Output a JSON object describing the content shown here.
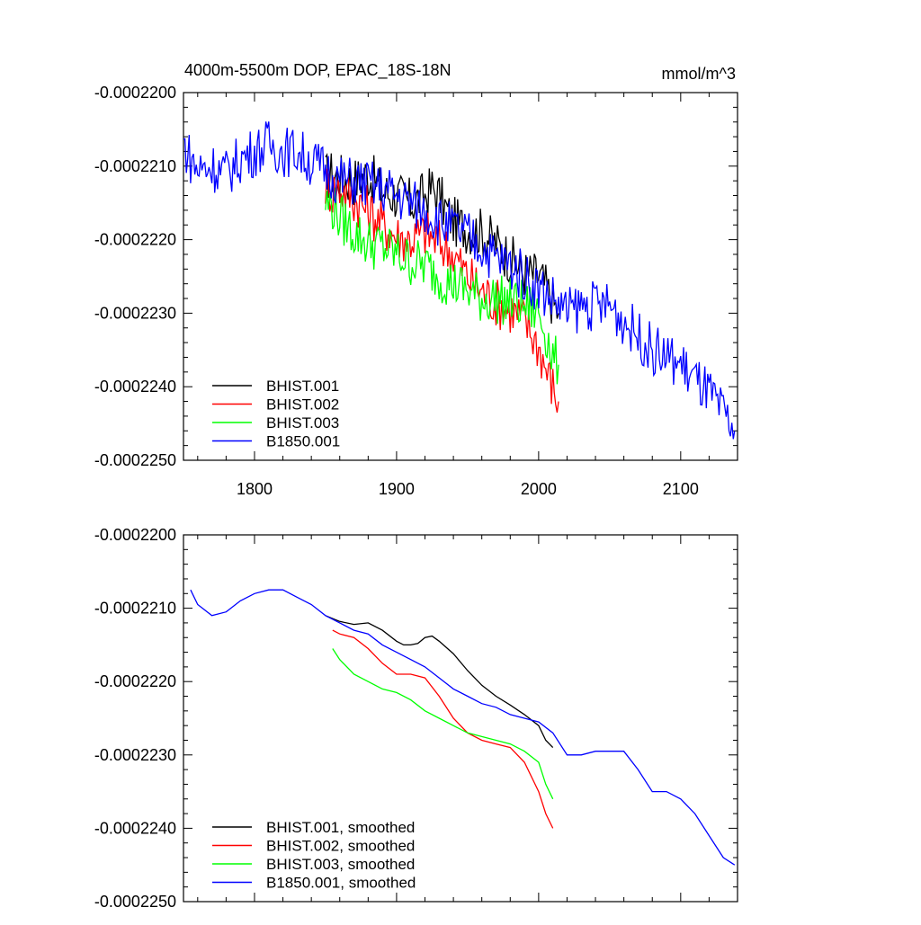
{
  "chart_data": [
    {
      "type": "line",
      "title": "4000m-5500m DOP, EPAC_18S-18N",
      "units": "mmol/m^3",
      "xlim": [
        1750,
        2140
      ],
      "ylim": [
        -0.000225,
        -0.00022
      ],
      "xticks": [
        1800,
        1900,
        2000,
        2100
      ],
      "xtick_labels": [
        "1800",
        "1900",
        "2000",
        "2100"
      ],
      "yticks": [
        -0.00022,
        -0.000221,
        -0.000222,
        -0.000223,
        -0.000224,
        -0.000225
      ],
      "ytick_labels": [
        "-0.0002200",
        "-0.0002210",
        "-0.0002220",
        "-0.0002230",
        "-0.0002240",
        "-0.0002250"
      ],
      "legend_position": "bottom-left",
      "series": [
        {
          "name": "BHIST.001",
          "color": "#000000",
          "x": [
            1850,
            1855,
            1860,
            1870,
            1880,
            1890,
            1900,
            1905,
            1910,
            1915,
            1920,
            1925,
            1930,
            1935,
            1940,
            1950,
            1960,
            1970,
            1980,
            1990,
            2000,
            2005,
            2010,
            2014
          ],
          "y": [
            -0.00022115,
            -0.0002211,
            -0.00022115,
            -0.0002212,
            -0.0002211,
            -0.00022135,
            -0.0002214,
            -0.00022145,
            -0.0002215,
            -0.00022145,
            -0.0002214,
            -0.0002213,
            -0.0002214,
            -0.0002216,
            -0.00022175,
            -0.00022185,
            -0.0002219,
            -0.00022205,
            -0.00022225,
            -0.00022245,
            -0.0002225,
            -0.00022265,
            -0.00022285,
            -0.000223
          ]
        },
        {
          "name": "BHIST.002",
          "color": "#ff0000",
          "x": [
            1850,
            1855,
            1860,
            1870,
            1880,
            1890,
            1900,
            1910,
            1920,
            1930,
            1940,
            1950,
            1960,
            1970,
            1980,
            1990,
            2000,
            2005,
            2010,
            2014
          ],
          "y": [
            -0.00022125,
            -0.00022135,
            -0.0002213,
            -0.00022145,
            -0.0002216,
            -0.0002218,
            -0.00022195,
            -0.000222,
            -0.0002219,
            -0.00022205,
            -0.0002222,
            -0.0002225,
            -0.0002227,
            -0.00022285,
            -0.00022295,
            -0.0002231,
            -0.00022345,
            -0.00022375,
            -0.000224,
            -0.0002242
          ]
        },
        {
          "name": "BHIST.003",
          "color": "#00ff00",
          "x": [
            1850,
            1855,
            1860,
            1870,
            1880,
            1890,
            1900,
            1910,
            1920,
            1930,
            1940,
            1950,
            1960,
            1970,
            1980,
            1990,
            2000,
            2005,
            2010,
            2014
          ],
          "y": [
            -0.0002215,
            -0.00022155,
            -0.0002217,
            -0.0002219,
            -0.00022205,
            -0.0002221,
            -0.0002222,
            -0.0002223,
            -0.00022235,
            -0.0002225,
            -0.0002226,
            -0.0002227,
            -0.0002228,
            -0.0002228,
            -0.00022285,
            -0.0002229,
            -0.000223,
            -0.00022325,
            -0.0002236,
            -0.0002237
          ]
        },
        {
          "name": "B1850.001",
          "color": "#0000ff",
          "x": [
            1750,
            1755,
            1760,
            1770,
            1780,
            1790,
            1800,
            1810,
            1820,
            1830,
            1840,
            1850,
            1860,
            1870,
            1880,
            1890,
            1900,
            1910,
            1920,
            1930,
            1940,
            1950,
            1960,
            1970,
            1980,
            1990,
            2000,
            2010,
            2020,
            2030,
            2040,
            2050,
            2060,
            2070,
            2080,
            2090,
            2100,
            2110,
            2120,
            2130,
            2138
          ],
          "y": [
            -0.0002207,
            -0.0002209,
            -0.00022105,
            -0.000221,
            -0.0002211,
            -0.0002209,
            -0.0002208,
            -0.0002207,
            -0.0002208,
            -0.0002208,
            -0.00022095,
            -0.00022105,
            -0.0002212,
            -0.0002212,
            -0.00022125,
            -0.0002213,
            -0.0002214,
            -0.0002215,
            -0.0002216,
            -0.00022175,
            -0.00022185,
            -0.00022195,
            -0.0002221,
            -0.00022225,
            -0.00022235,
            -0.0002225,
            -0.00022265,
            -0.0002228,
            -0.000223,
            -0.0002229,
            -0.0002229,
            -0.0002229,
            -0.0002231,
            -0.0002233,
            -0.0002235,
            -0.0002236,
            -0.0002237,
            -0.0002239,
            -0.0002241,
            -0.0002244,
            -0.0002246
          ]
        }
      ]
    },
    {
      "type": "line",
      "title": "",
      "xlim": [
        1750,
        2140
      ],
      "ylim": [
        -0.000225,
        -0.00022
      ],
      "xticks": [
        1800,
        1900,
        2000,
        2100
      ],
      "yticks": [
        -0.00022,
        -0.000221,
        -0.000222,
        -0.000223,
        -0.000224,
        -0.000225
      ],
      "ytick_labels": [
        "-0.0002200",
        "-0.0002210",
        "-0.0002220",
        "-0.0002230",
        "-0.0002240",
        "-0.0002250"
      ],
      "legend_position": "bottom-left",
      "series": [
        {
          "name": "BHIST.001, smoothed",
          "color": "#000000",
          "x": [
            1850,
            1860,
            1870,
            1880,
            1890,
            1900,
            1905,
            1910,
            1915,
            1920,
            1925,
            1930,
            1940,
            1950,
            1960,
            1970,
            1980,
            1990,
            2000,
            2005,
            2010
          ],
          "y": [
            -0.0002211,
            -0.00022118,
            -0.00022122,
            -0.0002212,
            -0.0002213,
            -0.00022145,
            -0.0002215,
            -0.0002215,
            -0.00022148,
            -0.0002214,
            -0.00022138,
            -0.00022145,
            -0.00022162,
            -0.00022185,
            -0.00022205,
            -0.0002222,
            -0.00022232,
            -0.00022245,
            -0.0002226,
            -0.0002228,
            -0.0002229
          ]
        },
        {
          "name": "BHIST.002, smoothed",
          "color": "#ff0000",
          "x": [
            1855,
            1860,
            1870,
            1880,
            1890,
            1900,
            1910,
            1920,
            1930,
            1940,
            1950,
            1960,
            1970,
            1980,
            1990,
            2000,
            2005,
            2010
          ],
          "y": [
            -0.0002213,
            -0.00022135,
            -0.0002214,
            -0.00022155,
            -0.00022175,
            -0.0002219,
            -0.0002219,
            -0.00022195,
            -0.0002222,
            -0.0002225,
            -0.0002227,
            -0.0002228,
            -0.00022285,
            -0.0002229,
            -0.0002231,
            -0.0002235,
            -0.0002238,
            -0.000224
          ]
        },
        {
          "name": "BHIST.003, smoothed",
          "color": "#00ff00",
          "x": [
            1855,
            1860,
            1870,
            1880,
            1890,
            1900,
            1910,
            1920,
            1930,
            1940,
            1950,
            1960,
            1970,
            1980,
            1990,
            2000,
            2005,
            2010
          ],
          "y": [
            -0.00022155,
            -0.0002217,
            -0.0002219,
            -0.000222,
            -0.0002221,
            -0.00022215,
            -0.00022225,
            -0.0002224,
            -0.0002225,
            -0.0002226,
            -0.0002227,
            -0.00022275,
            -0.0002228,
            -0.00022285,
            -0.00022295,
            -0.0002231,
            -0.0002234,
            -0.0002236
          ]
        },
        {
          "name": "B1850.001, smoothed",
          "color": "#0000ff",
          "x": [
            1755,
            1760,
            1770,
            1780,
            1790,
            1800,
            1810,
            1820,
            1830,
            1840,
            1850,
            1860,
            1870,
            1880,
            1890,
            1900,
            1910,
            1920,
            1930,
            1940,
            1950,
            1960,
            1970,
            1980,
            1990,
            2000,
            2010,
            2020,
            2030,
            2040,
            2050,
            2060,
            2070,
            2080,
            2090,
            2100,
            2110,
            2120,
            2130,
            2138
          ],
          "y": [
            -0.00022075,
            -0.00022095,
            -0.0002211,
            -0.00022105,
            -0.0002209,
            -0.0002208,
            -0.00022075,
            -0.00022075,
            -0.00022085,
            -0.00022095,
            -0.0002211,
            -0.0002212,
            -0.0002213,
            -0.00022135,
            -0.0002215,
            -0.0002216,
            -0.0002217,
            -0.0002218,
            -0.00022195,
            -0.0002221,
            -0.0002222,
            -0.0002223,
            -0.00022235,
            -0.00022245,
            -0.0002225,
            -0.00022255,
            -0.0002227,
            -0.000223,
            -0.000223,
            -0.00022295,
            -0.00022295,
            -0.00022295,
            -0.0002232,
            -0.0002235,
            -0.0002235,
            -0.0002236,
            -0.0002238,
            -0.0002241,
            -0.0002244,
            -0.0002245
          ]
        }
      ]
    }
  ]
}
